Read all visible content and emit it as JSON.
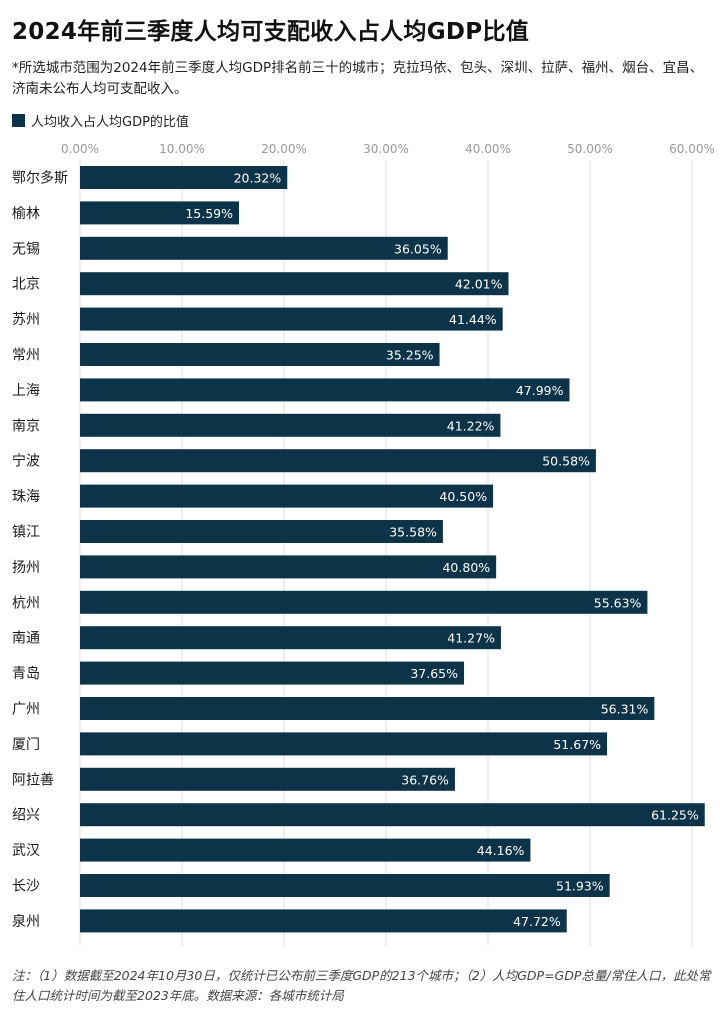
{
  "title": "2024年前三季度人均可支配收入占人均GDP比值",
  "note": "*所选城市范围为2024年前三季度人均GDP排名前三十的城市；克拉玛依、包头、深圳、拉萨、福州、烟台、宜昌、济南未公布人均可支配收入。",
  "legend_label": "人均收入占人均GDP的比值",
  "footnote": "注：（1）数据截至2024年10月30日，仅统计已公布前三季度GDP的213个城市；（2）人均GDP=GDP总量/常住人口，此处常住人口统计时间为截至2023年底。数据来源：各城市统计局",
  "colors": {
    "bar": "#0d3348",
    "grid": "#dddddd",
    "label_text": "#ffffff",
    "tick_text": "#999999"
  },
  "chart_data": {
    "type": "bar",
    "orientation": "horizontal",
    "series": [
      {
        "name": "人均收入占人均GDP的比值",
        "values": [
          20.32,
          15.59,
          36.05,
          42.01,
          41.44,
          35.25,
          47.99,
          41.22,
          50.58,
          40.5,
          35.58,
          40.8,
          55.63,
          41.27,
          37.65,
          56.31,
          51.67,
          36.76,
          61.25,
          44.16,
          51.93,
          47.72
        ]
      }
    ],
    "categories": [
      "鄂尔多斯",
      "榆林",
      "无锡",
      "北京",
      "苏州",
      "常州",
      "上海",
      "南京",
      "宁波",
      "珠海",
      "镇江",
      "扬州",
      "杭州",
      "南通",
      "青岛",
      "广州",
      "厦门",
      "阿拉善",
      "绍兴",
      "武汉",
      "长沙",
      "泉州"
    ],
    "data_labels": [
      "20.32%",
      "15.59%",
      "36.05%",
      "42.01%",
      "41.44%",
      "35.25%",
      "47.99%",
      "41.22%",
      "50.58%",
      "40.50%",
      "35.58%",
      "40.80%",
      "55.63%",
      "41.27%",
      "37.65%",
      "56.31%",
      "51.67%",
      "36.76%",
      "61.25%",
      "44.16%",
      "51.93%",
      "47.72%"
    ],
    "xticks": [
      "0.00%",
      "10.00%",
      "20.00%",
      "30.00%",
      "40.00%",
      "50.00%",
      "60.00%"
    ],
    "xlim": [
      0,
      61.25
    ],
    "grid": true,
    "legend": "top-left",
    "unit": "%"
  }
}
